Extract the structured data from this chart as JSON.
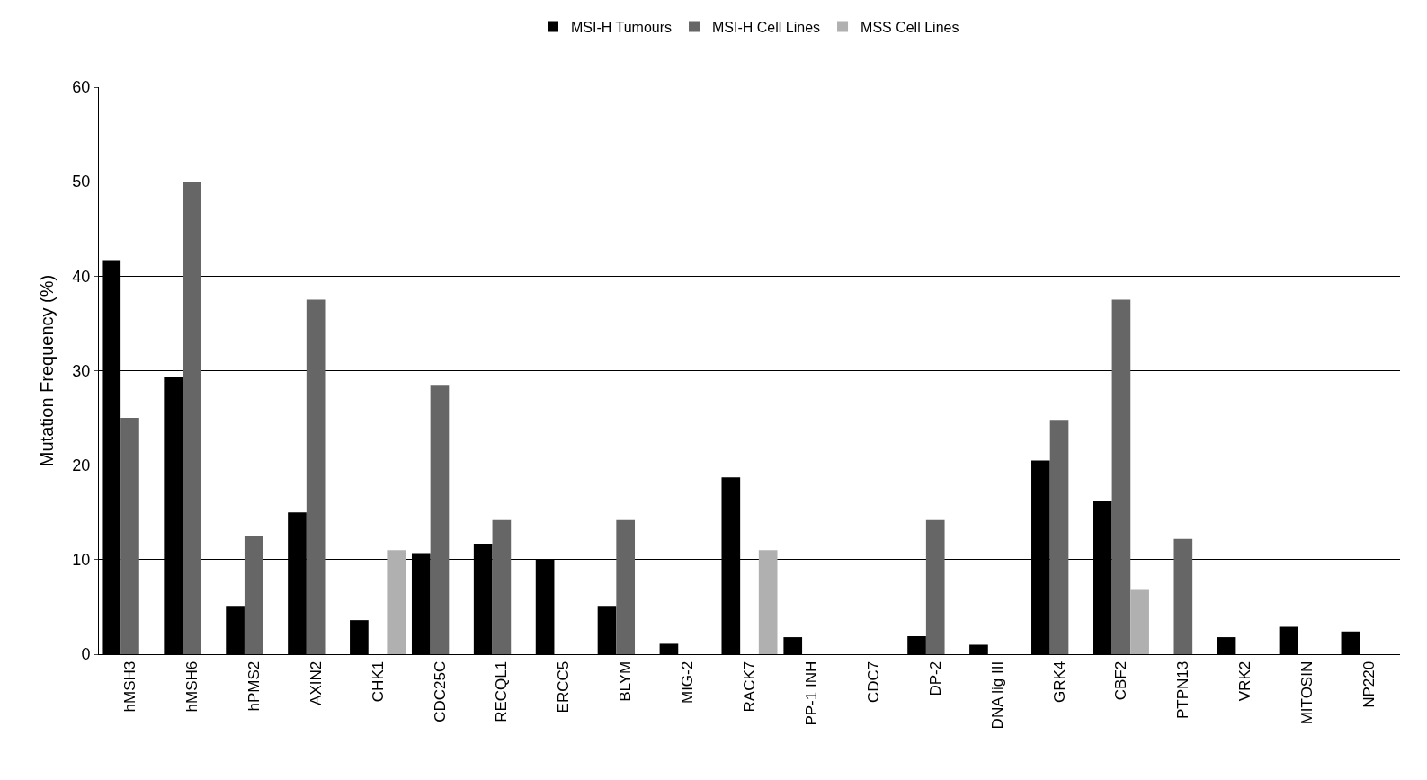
{
  "chart_data": {
    "type": "bar",
    "ylabel": "Mutation Frequency (%)",
    "categories": [
      "hMSH3",
      "hMSH6",
      "hPMS2",
      "AXIN2",
      "CHK1",
      "CDC25C",
      "RECQL1",
      "ERCC5",
      "BLYM",
      "MIG-2",
      "RACK7",
      "PP-1 INH",
      "CDC7",
      "DP-2",
      "DNA lig III",
      "GRK4",
      "CBF2",
      "PTPN13",
      "VRK2",
      "MITOSIN",
      "NP220"
    ],
    "series": [
      {
        "name": "MSI-H Tumours",
        "color": "#000000",
        "values": [
          41.7,
          29.3,
          5.1,
          15,
          3.6,
          10.7,
          11.7,
          10,
          5.1,
          1.1,
          18.7,
          1.8,
          0,
          1.9,
          1,
          20.5,
          16.2,
          0,
          1.8,
          2.9,
          2.4
        ]
      },
      {
        "name": "MSI-H Cell Lines",
        "color": "#666666",
        "values": [
          25,
          50,
          12.5,
          37.5,
          null,
          28.5,
          14.2,
          0,
          14.2,
          0,
          null,
          0,
          0,
          14.2,
          0,
          24.8,
          37.5,
          12.2,
          0,
          0,
          0
        ]
      },
      {
        "name": "MSS Cell Lines",
        "color": "#b0b0b0",
        "values": [
          null,
          null,
          null,
          null,
          11,
          null,
          null,
          null,
          null,
          null,
          11,
          null,
          null,
          null,
          null,
          null,
          6.8,
          null,
          null,
          null,
          null
        ]
      }
    ],
    "ylim": [
      0,
      60
    ],
    "yticks": [
      0,
      10,
      20,
      30,
      40,
      50,
      60
    ],
    "grid": "y",
    "legend": "top"
  }
}
